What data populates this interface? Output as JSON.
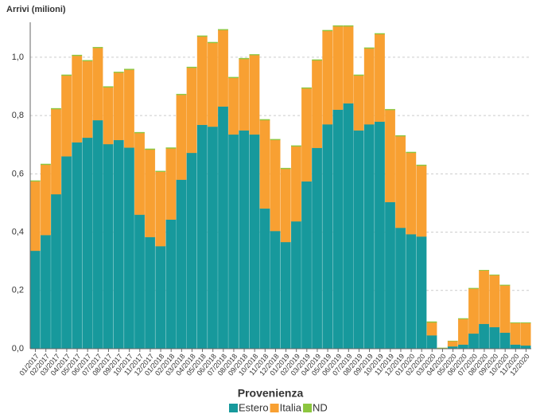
{
  "chart_data": {
    "type": "stacked_bar",
    "y_label": "Arrivi (milioni)",
    "legend_title": "Provenienza",
    "categories": [
      "01/2017",
      "02/2017",
      "03/2017",
      "04/2017",
      "05/2017",
      "06/2017",
      "07/2017",
      "08/2017",
      "09/2017",
      "10/2017",
      "11/2017",
      "12/2017",
      "01/2018",
      "02/2018",
      "03/2018",
      "04/2018",
      "05/2018",
      "06/2018",
      "07/2018",
      "08/2018",
      "09/2018",
      "10/2018",
      "11/2018",
      "12/2018",
      "01/2019",
      "02/2019",
      "03/2019",
      "04/2019",
      "05/2019",
      "06/2019",
      "07/2019",
      "08/2019",
      "09/2019",
      "10/2019",
      "11/2019",
      "12/2019",
      "01/2020",
      "02/2020",
      "03/2020",
      "04/2020",
      "05/2020",
      "06/2020",
      "07/2020",
      "08/2020",
      "09/2020",
      "10/2020",
      "11/2020",
      "12/2020"
    ],
    "series": [
      {
        "name": "Estero",
        "color": "#17999c",
        "values": [
          0.336,
          0.39,
          0.53,
          0.66,
          0.708,
          0.724,
          0.784,
          0.702,
          0.716,
          0.69,
          0.46,
          0.383,
          0.352,
          0.443,
          0.58,
          0.672,
          0.768,
          0.762,
          0.831,
          0.735,
          0.749,
          0.735,
          0.481,
          0.404,
          0.366,
          0.437,
          0.574,
          0.689,
          0.77,
          0.82,
          0.842,
          0.749,
          0.77,
          0.779,
          0.503,
          0.415,
          0.393,
          0.385,
          0.046,
          0.001,
          0.008,
          0.014,
          0.052,
          0.085,
          0.074,
          0.055,
          0.014,
          0.011
        ]
      },
      {
        "name": "Italia",
        "color": "#f8a032",
        "values": [
          0.238,
          0.241,
          0.292,
          0.277,
          0.297,
          0.263,
          0.248,
          0.195,
          0.231,
          0.267,
          0.28,
          0.3,
          0.255,
          0.244,
          0.291,
          0.292,
          0.303,
          0.287,
          0.262,
          0.194,
          0.245,
          0.272,
          0.303,
          0.312,
          0.251,
          0.257,
          0.319,
          0.3,
          0.32,
          0.286,
          0.264,
          0.188,
          0.26,
          0.3,
          0.316,
          0.314,
          0.279,
          0.243,
          0.044,
          0.001,
          0.018,
          0.088,
          0.154,
          0.183,
          0.178,
          0.162,
          0.074,
          0.077
        ]
      },
      {
        "name": "ND",
        "color": "#8cc63f",
        "values": [
          0.003,
          0.003,
          0.003,
          0.003,
          0.003,
          0.003,
          0.003,
          0.003,
          0.003,
          0.003,
          0.003,
          0.003,
          0.003,
          0.003,
          0.003,
          0.003,
          0.003,
          0.003,
          0.003,
          0.003,
          0.003,
          0.003,
          0.003,
          0.003,
          0.003,
          0.003,
          0.003,
          0.003,
          0.003,
          0.003,
          0.003,
          0.003,
          0.003,
          0.003,
          0.003,
          0.003,
          0.003,
          0.003,
          0.003,
          0.001,
          0.001,
          0.002,
          0.002,
          0.002,
          0.002,
          0.002,
          0.002,
          0.002
        ]
      }
    ],
    "ylim": [
      0,
      1.12
    ],
    "yticks": [
      {
        "value": 0,
        "label": "0,0"
      },
      {
        "value": 0.2,
        "label": "0,2"
      },
      {
        "value": 0.4,
        "label": "0,4"
      },
      {
        "value": 0.6,
        "label": "0,6"
      },
      {
        "value": 0.8,
        "label": "0,8"
      },
      {
        "value": 1.0,
        "label": "1,0"
      }
    ],
    "grid": true
  }
}
